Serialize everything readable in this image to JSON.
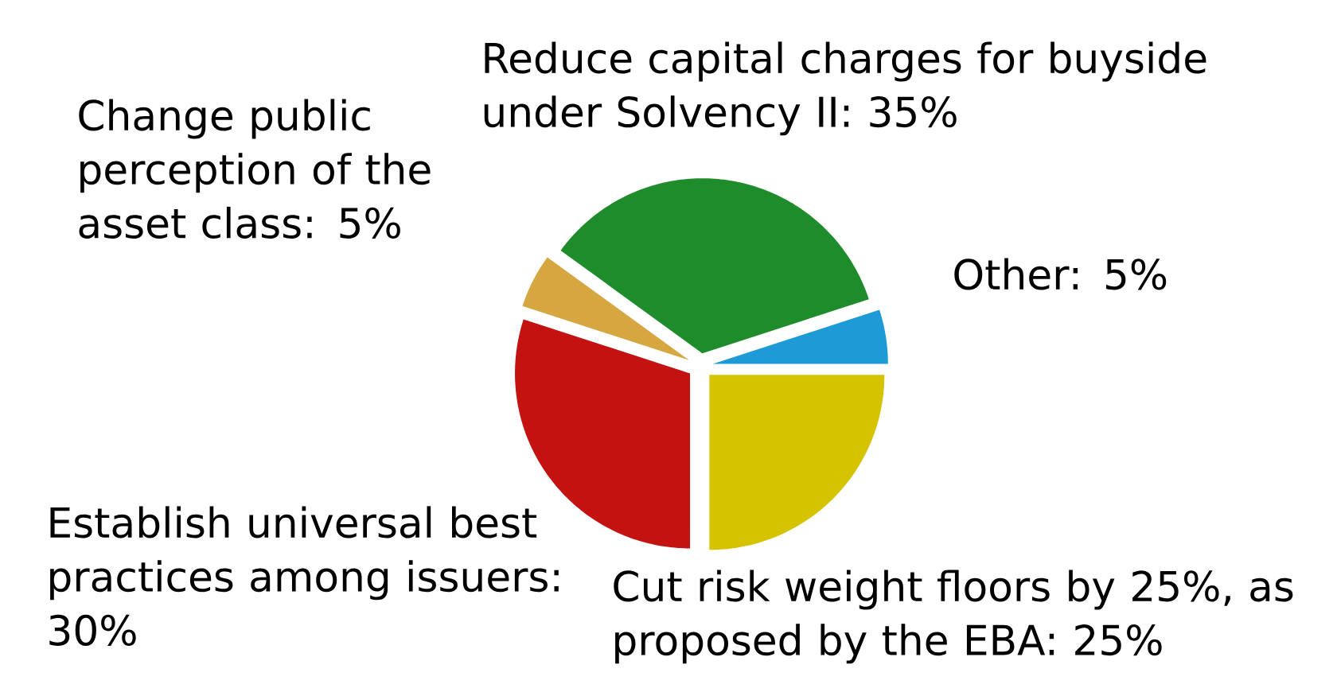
{
  "chart_data": {
    "type": "pie",
    "categories": [
      "Reduce capital charges for buyside under Solvency II: 35%",
      "Other: 5%",
      "Cut risk weight floors by 25%, as proposed by the EBA: 25%",
      "Establish universal best practices among issuers: 30%",
      "Change public perception of the asset class: 5%"
    ],
    "values": [
      35,
      5,
      25,
      30,
      5
    ],
    "colors": [
      "#1f8c2b",
      "#1e9bd7",
      "#d6c300",
      "#c3120f",
      "#d6a640"
    ]
  }
}
